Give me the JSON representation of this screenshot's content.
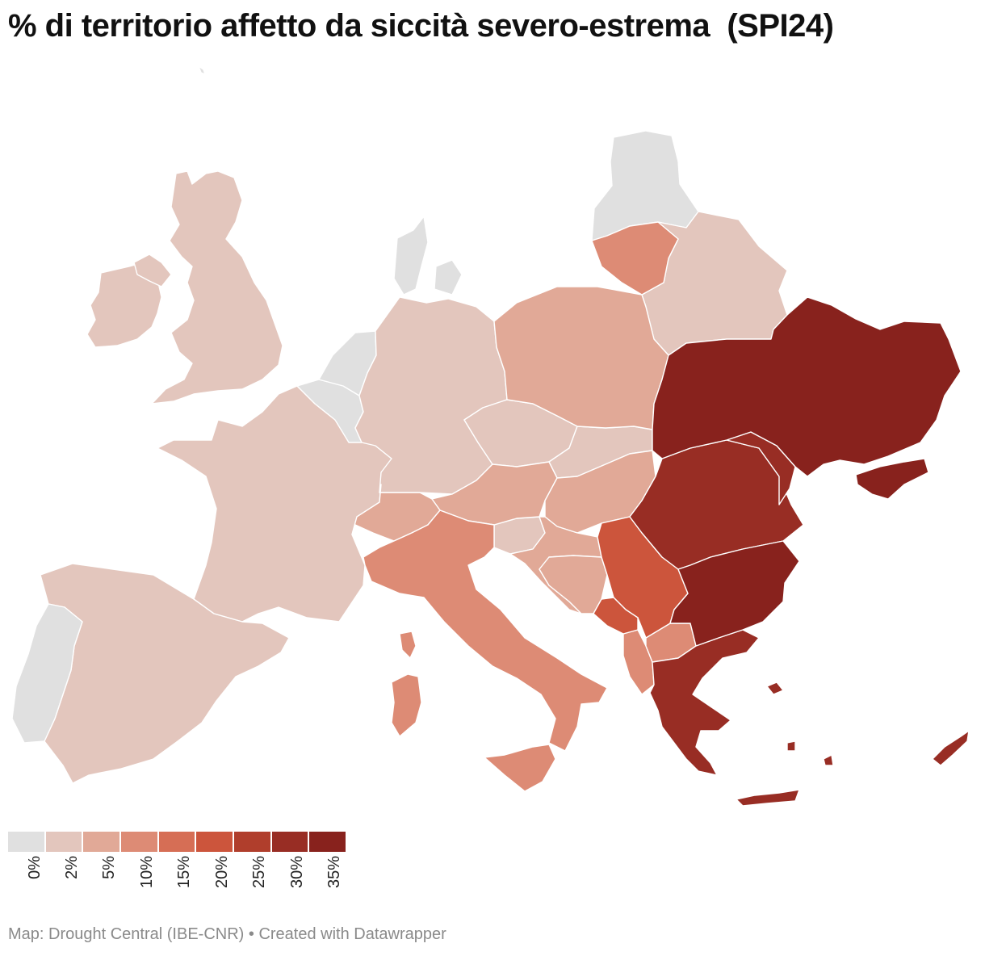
{
  "title": "% di territorio affetto da siccità severo-estrema  (SPI24)",
  "footer": {
    "source": "Map: Drought Central (IBE-CNR)",
    "separator": " • ",
    "credit": "Created with Datawrapper"
  },
  "legend": {
    "bins": [
      {
        "label": "0%",
        "color": "#e0e0e0"
      },
      {
        "label": "2%",
        "color": "#e3c6bd"
      },
      {
        "label": "5%",
        "color": "#e1a997"
      },
      {
        "label": "10%",
        "color": "#dd8b75"
      },
      {
        "label": "15%",
        "color": "#d66e55"
      },
      {
        "label": "20%",
        "color": "#cc553c"
      },
      {
        "label": "25%",
        "color": "#b03e2c"
      },
      {
        "label": "30%",
        "color": "#982d24"
      },
      {
        "label": "35%",
        "color": "#88221d"
      }
    ]
  },
  "map": {
    "regions": [
      {
        "name": "Iceland",
        "color": "#e0e0e0"
      },
      {
        "name": "Ireland",
        "color": "#e3c6bd"
      },
      {
        "name": "United Kingdom",
        "color": "#e3c6bd"
      },
      {
        "name": "France",
        "color": "#e3c6bd"
      },
      {
        "name": "Spain",
        "color": "#e3c6bd"
      },
      {
        "name": "Portugal",
        "color": "#e0e0e0"
      },
      {
        "name": "Belgium-Luxembourg",
        "color": "#e0e0e0"
      },
      {
        "name": "Netherlands",
        "color": "#e0e0e0"
      },
      {
        "name": "Denmark",
        "color": "#e0e0e0"
      },
      {
        "name": "Estonia-Latvia",
        "color": "#e0e0e0"
      },
      {
        "name": "Germany",
        "color": "#e3c6bd"
      },
      {
        "name": "Czechia",
        "color": "#e3c6bd"
      },
      {
        "name": "Slovakia",
        "color": "#e3c6bd"
      },
      {
        "name": "Slovenia",
        "color": "#e3c6bd"
      },
      {
        "name": "Belarus",
        "color": "#e3c6bd"
      },
      {
        "name": "Poland",
        "color": "#e1a997"
      },
      {
        "name": "Austria",
        "color": "#e1a997"
      },
      {
        "name": "Hungary",
        "color": "#e1a997"
      },
      {
        "name": "Croatia",
        "color": "#e1a997"
      },
      {
        "name": "Bosnia and Herzegovina",
        "color": "#e1a997"
      },
      {
        "name": "Switzerland",
        "color": "#e1a997"
      },
      {
        "name": "Lithuania",
        "color": "#dd8b75"
      },
      {
        "name": "Italy",
        "color": "#dd8b75"
      },
      {
        "name": "Sardinia",
        "color": "#dd8b75"
      },
      {
        "name": "Sicily",
        "color": "#dd8b75"
      },
      {
        "name": "Albania",
        "color": "#dd8b75"
      },
      {
        "name": "North Macedonia",
        "color": "#dd8b75"
      },
      {
        "name": "Serbia",
        "color": "#cc553c"
      },
      {
        "name": "Montenegro",
        "color": "#cc553c"
      },
      {
        "name": "Romania",
        "color": "#982d24"
      },
      {
        "name": "Moldova",
        "color": "#982d24"
      },
      {
        "name": "Greece",
        "color": "#982d24"
      },
      {
        "name": "Ukraine",
        "color": "#88221d"
      },
      {
        "name": "Bulgaria",
        "color": "#88221d"
      },
      {
        "name": "Cyprus",
        "color": "#982d24"
      },
      {
        "name": "Crete",
        "color": "#982d24"
      }
    ]
  }
}
